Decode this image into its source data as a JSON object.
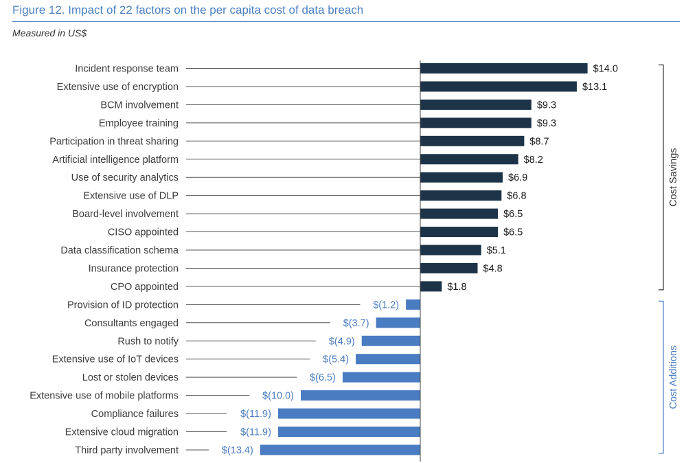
{
  "header": {
    "title": "Figure 12. Impact of 22 factors on the per capita cost of data breach",
    "subtitle": "Measured in US$"
  },
  "colors": {
    "title": "#4a7fc1",
    "savings_bar": "#1d3448",
    "additions_bar": "#4a7cc2",
    "savings_text": "#1a1a1a",
    "additions_text": "#4a7cc2",
    "leader_line": "#555555",
    "axis": "#444444"
  },
  "chart_data": {
    "type": "bar",
    "orientation": "horizontal",
    "title": "Figure 12. Impact of 22 factors on the per capita cost of data breach",
    "subtitle": "Measured in US$",
    "categories": [
      "Incident response team",
      "Extensive use of encryption",
      "BCM involvement",
      "Employee training",
      "Participation in threat sharing",
      "Artificial intelligence platform",
      "Use of security analytics",
      "Extensive use of DLP",
      "Board-level involvement",
      "CISO appointed",
      "Data classification schema",
      "Insurance protection",
      "CPO appointed",
      "Provision of ID protection",
      "Consultants engaged",
      "Rush to notify",
      "Extensive use of IoT devices",
      "Lost or stolen devices",
      "Extensive use of mobile platforms",
      "Compliance failures",
      "Extensive cloud migration",
      "Third party involvement"
    ],
    "values": [
      14.0,
      13.1,
      9.3,
      9.3,
      8.7,
      8.2,
      6.9,
      6.8,
      6.5,
      6.5,
      5.1,
      4.8,
      1.8,
      -1.2,
      -3.7,
      -4.9,
      -5.4,
      -6.5,
      -10.0,
      -11.9,
      -11.9,
      -13.4
    ],
    "value_labels": [
      "$14.0",
      "$13.1",
      "$9.3",
      "$9.3",
      "$8.7",
      "$8.2",
      "$6.9",
      "$6.8",
      "$6.5",
      "$6.5",
      "$5.1",
      "$4.8",
      "$1.8",
      "$(1.2)",
      "$(3.7)",
      "$(4.9)",
      "$(5.4)",
      "$(6.5)",
      "$(10.0)",
      "$(11.9)",
      "$(11.9)",
      "$(13.4)"
    ],
    "groups": [
      {
        "name": "Cost Savings",
        "start": 0,
        "end": 12
      },
      {
        "name": "Cost Additions",
        "start": 13,
        "end": 21
      }
    ],
    "xlim": [
      -15,
      15
    ],
    "grid": false,
    "legend": "none"
  }
}
